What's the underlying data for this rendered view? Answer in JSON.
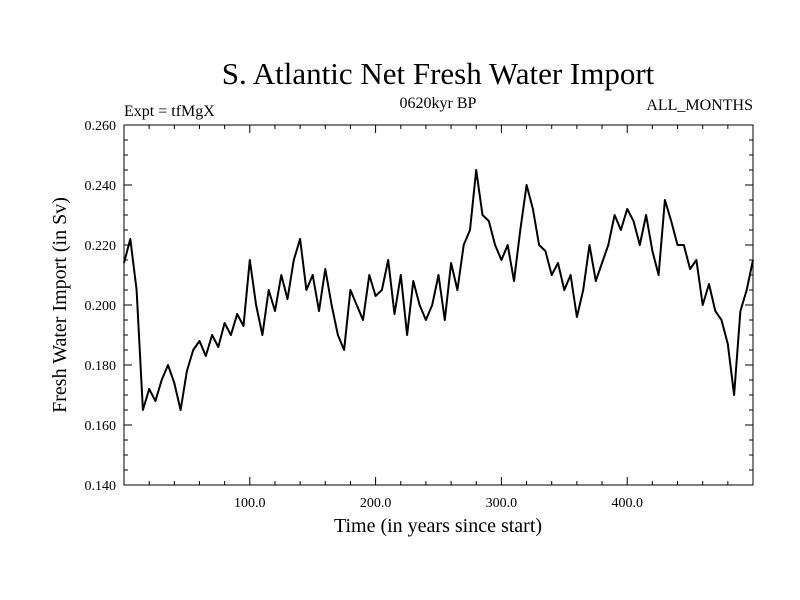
{
  "chart_data": {
    "type": "line",
    "title": "S. Atlantic Net Fresh Water Import",
    "subtitle_left": "Expt = tfMgX",
    "subtitle_center": "0620kyr BP",
    "subtitle_right": "ALL_MONTHS",
    "xlabel": "Time (in years since start)",
    "ylabel": "Fresh Water Import (in Sv)",
    "xlim": [
      0,
      500
    ],
    "ylim": [
      0.14,
      0.26
    ],
    "x_ticks": [
      100,
      200,
      300,
      400
    ],
    "x_tick_labels": [
      "100.0",
      "200.0",
      "300.0",
      "400.0"
    ],
    "y_ticks": [
      0.14,
      0.16,
      0.18,
      0.2,
      0.22,
      0.24,
      0.26
    ],
    "y_tick_labels": [
      "0.140",
      "0.160",
      "0.180",
      "0.200",
      "0.220",
      "0.240",
      "0.260"
    ],
    "grid": false,
    "series": [
      {
        "color": "#000000",
        "x": [
          0,
          5,
          10,
          15,
          20,
          25,
          30,
          35,
          40,
          45,
          50,
          55,
          60,
          65,
          70,
          75,
          80,
          85,
          90,
          95,
          100,
          105,
          110,
          115,
          120,
          125,
          130,
          135,
          140,
          145,
          150,
          155,
          160,
          165,
          170,
          175,
          180,
          185,
          190,
          195,
          200,
          205,
          210,
          215,
          220,
          225,
          230,
          235,
          240,
          245,
          250,
          255,
          260,
          265,
          270,
          275,
          280,
          285,
          290,
          295,
          300,
          305,
          310,
          315,
          320,
          325,
          330,
          335,
          340,
          345,
          350,
          355,
          360,
          365,
          370,
          375,
          380,
          385,
          390,
          395,
          400,
          405,
          410,
          415,
          420,
          425,
          430,
          435,
          440,
          445,
          450,
          455,
          460,
          465,
          470,
          475,
          480,
          485,
          490,
          495,
          500
        ],
        "y": [
          0.214,
          0.222,
          0.205,
          0.165,
          0.172,
          0.168,
          0.175,
          0.18,
          0.174,
          0.165,
          0.178,
          0.185,
          0.188,
          0.183,
          0.19,
          0.186,
          0.194,
          0.19,
          0.197,
          0.193,
          0.215,
          0.2,
          0.19,
          0.205,
          0.198,
          0.21,
          0.202,
          0.215,
          0.222,
          0.205,
          0.21,
          0.198,
          0.212,
          0.2,
          0.19,
          0.185,
          0.205,
          0.2,
          0.195,
          0.21,
          0.203,
          0.205,
          0.215,
          0.197,
          0.21,
          0.19,
          0.208,
          0.2,
          0.195,
          0.2,
          0.21,
          0.195,
          0.214,
          0.205,
          0.22,
          0.225,
          0.245,
          0.23,
          0.228,
          0.22,
          0.215,
          0.22,
          0.208,
          0.225,
          0.24,
          0.232,
          0.22,
          0.218,
          0.21,
          0.214,
          0.205,
          0.21,
          0.196,
          0.205,
          0.22,
          0.208,
          0.214,
          0.22,
          0.23,
          0.225,
          0.232,
          0.228,
          0.22,
          0.23,
          0.218,
          0.21,
          0.235,
          0.228,
          0.22,
          0.22,
          0.212,
          0.215,
          0.2,
          0.207,
          0.198,
          0.195,
          0.187,
          0.17,
          0.198,
          0.205,
          0.215
        ]
      }
    ]
  }
}
